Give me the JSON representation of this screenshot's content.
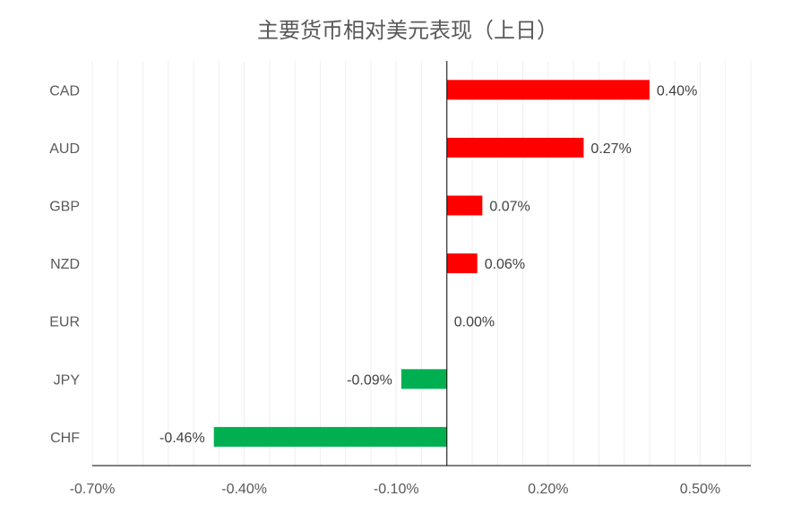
{
  "chart_data": {
    "type": "bar",
    "orientation": "horizontal",
    "title": "主要货币相对美元表现（上日）",
    "categories": [
      "CAD",
      "AUD",
      "GBP",
      "NZD",
      "EUR",
      "JPY",
      "CHF"
    ],
    "values": [
      0.4,
      0.27,
      0.07,
      0.06,
      0.0,
      -0.09,
      -0.46
    ],
    "data_labels": [
      "0.40%",
      "0.27%",
      "0.07%",
      "0.06%",
      "0.00%",
      "-0.09%",
      "-0.46%"
    ],
    "xlim": [
      -0.7,
      0.6
    ],
    "x_ticks": [
      -0.7,
      -0.4,
      -0.1,
      0.2,
      0.5
    ],
    "x_tick_labels": [
      "-0.70%",
      "-0.40%",
      "-0.10%",
      "0.20%",
      "0.50%"
    ],
    "minor_grid_step": 0.05,
    "grid": true,
    "legend": "none",
    "colors": {
      "positive": "#ff0000",
      "negative": "#00b050",
      "axis": "#000000",
      "grid": "#efefef"
    }
  }
}
